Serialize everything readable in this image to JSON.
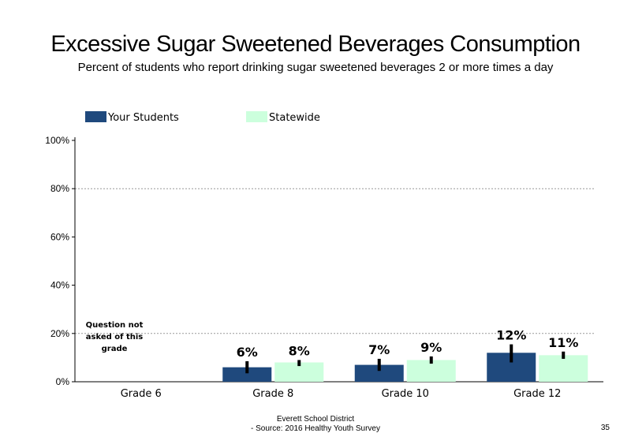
{
  "slide": {
    "title": "Excessive Sugar Sweetened Beverages Consumption",
    "subtitle": "Percent of students who report drinking sugar sweetened  beverages  2 or more times  a day",
    "footer_line1": "Everett School District",
    "footer_line2": "- Source: 2016 Healthy  Youth Survey",
    "page_number": "35",
    "note": "Question not asked of this grade"
  },
  "chart_data": {
    "type": "bar",
    "title": "",
    "xlabel": "",
    "ylabel": "",
    "ylim": [
      0,
      100
    ],
    "yticks": [
      0,
      20,
      40,
      60,
      80,
      100
    ],
    "ytick_labels": [
      "0%",
      "20%",
      "40%",
      "60%",
      "80%",
      "100%"
    ],
    "categories": [
      "Grade 6",
      "Grade 8",
      "Grade 10",
      "Grade 12"
    ],
    "legend_position": "top",
    "grid": "dotted horizontal at 20% and 80%",
    "series": [
      {
        "name": "Your Students",
        "color": "#1f497d",
        "values": [
          null,
          6,
          7,
          12
        ],
        "labels": [
          "",
          "6%",
          "7%",
          "12%"
        ],
        "error_low": [
          null,
          3.5,
          4.5,
          8
        ],
        "error_high": [
          null,
          8.5,
          9.5,
          15.5
        ]
      },
      {
        "name": "Statewide",
        "color": "#ccffdd",
        "values": [
          null,
          8,
          9,
          11
        ],
        "labels": [
          "",
          "8%",
          "9%",
          "11%"
        ],
        "error_low": [
          null,
          6.5,
          7.5,
          9.5
        ],
        "error_high": [
          null,
          9,
          10.5,
          12.5
        ]
      }
    ]
  }
}
